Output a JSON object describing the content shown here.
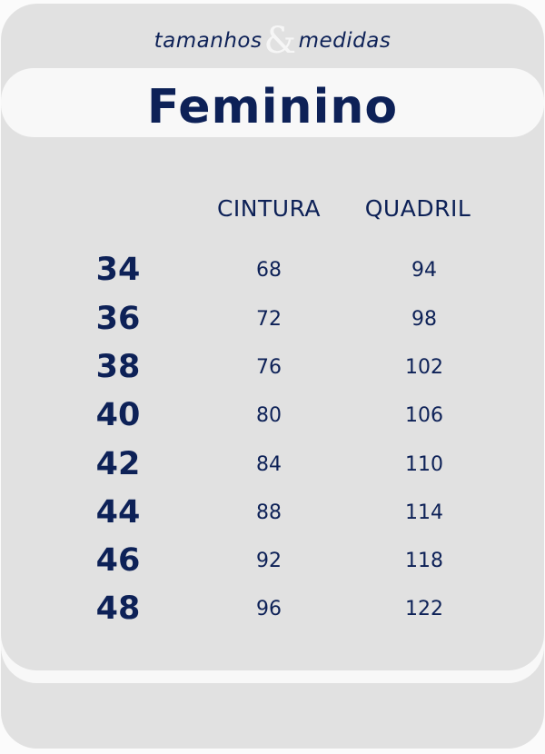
{
  "header": {
    "subtitle_left": "tamanhos",
    "subtitle_amp": "&",
    "subtitle_right": "medidas",
    "title": "Feminino"
  },
  "table": {
    "columns": [
      "CINTURA",
      "QUADRIL"
    ],
    "rows": [
      {
        "size": "34",
        "cintura": "68",
        "quadril": "94"
      },
      {
        "size": "36",
        "cintura": "72",
        "quadril": "98"
      },
      {
        "size": "38",
        "cintura": "76",
        "quadril": "102"
      },
      {
        "size": "40",
        "cintura": "80",
        "quadril": "106"
      },
      {
        "size": "42",
        "cintura": "84",
        "quadril": "110"
      },
      {
        "size": "44",
        "cintura": "88",
        "quadril": "114"
      },
      {
        "size": "46",
        "cintura": "92",
        "quadril": "118"
      },
      {
        "size": "48",
        "cintura": "96",
        "quadril": "122"
      }
    ]
  },
  "colors": {
    "text": "#0d2157",
    "panel": "#e1e1e1",
    "band": "#f8f8f8"
  }
}
